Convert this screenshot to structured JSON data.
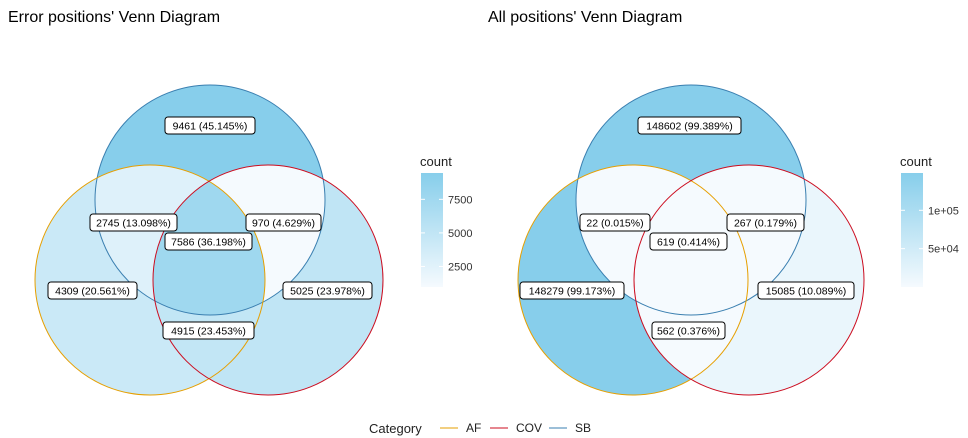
{
  "colors": {
    "AF": "#E69F00",
    "COV": "#CC0C1F",
    "SB": "#3A7FB0",
    "fill_low": "#F5FAFE",
    "fill_high": "#87CEEB",
    "label_border": "#000000"
  },
  "left": {
    "title": "Error positions' Venn Diagram",
    "regions": [
      {
        "key": "sb_only",
        "label": "9461 (45.145%)",
        "count": 9461
      },
      {
        "key": "af_sb",
        "label": "2745 (13.098%)",
        "count": 2745
      },
      {
        "key": "sb_cov",
        "label": "970 (4.629%)",
        "count": 970
      },
      {
        "key": "all",
        "label": "7586 (36.198%)",
        "count": 7586
      },
      {
        "key": "af_only",
        "label": "4309 (20.561%)",
        "count": 4309
      },
      {
        "key": "cov_only",
        "label": "5025 (23.978%)",
        "count": 5025
      },
      {
        "key": "af_cov",
        "label": "4915 (23.453%)",
        "count": 4915
      }
    ],
    "legend": {
      "title": "count",
      "min": 970,
      "max": 9461,
      "ticks": [
        "7500",
        "5000",
        "2500"
      ],
      "tick_values": [
        7500,
        5000,
        2500
      ]
    }
  },
  "right": {
    "title": "All positions' Venn Diagram",
    "regions": [
      {
        "key": "sb_only",
        "label": "148602 (99.389%)",
        "count": 148602
      },
      {
        "key": "af_sb",
        "label": "22 (0.015%)",
        "count": 22
      },
      {
        "key": "sb_cov",
        "label": "267 (0.179%)",
        "count": 267
      },
      {
        "key": "all",
        "label": "619 (0.414%)",
        "count": 619
      },
      {
        "key": "af_only",
        "label": "148279 (99.173%)",
        "count": 148279
      },
      {
        "key": "cov_only",
        "label": "15085 (10.089%)",
        "count": 15085
      },
      {
        "key": "af_cov",
        "label": "562 (0.376%)",
        "count": 562
      }
    ],
    "legend": {
      "title": "count",
      "min": 22,
      "max": 148602,
      "ticks": [
        "1e+05",
        "5e+04"
      ],
      "tick_values": [
        100000,
        50000
      ]
    }
  },
  "category_legend": {
    "title": "Category",
    "items": [
      {
        "key": "AF",
        "label": "AF"
      },
      {
        "key": "COV",
        "label": "COV"
      },
      {
        "key": "SB",
        "label": "SB"
      }
    ]
  }
}
